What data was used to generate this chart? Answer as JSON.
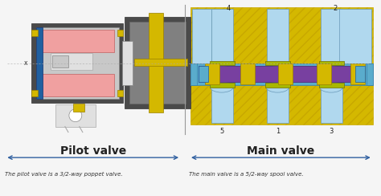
{
  "background_color": "#f5f5f5",
  "pilot_label": "Pilot valve",
  "main_label": "Main valve",
  "pilot_desc": "The pilot valve is a 3/2-way poppet valve.",
  "main_desc": "The main valve is a 5/2-way spool valve.",
  "colors": {
    "yellow": "#d4b800",
    "yellow_hatch": "#c8a800",
    "dark_gray": "#4a4a4a",
    "med_gray": "#808080",
    "light_gray": "#c8c8c8",
    "vlight_gray": "#e0e0e0",
    "pink": "#f0a0a0",
    "blue": "#5aaccc",
    "light_blue": "#b0d8ee",
    "purple": "#7840a0",
    "green_yellow": "#a8b800",
    "arrow_color": "#3060a0",
    "white": "#ffffff",
    "black": "#222222",
    "blue_dark": "#2060a0"
  }
}
